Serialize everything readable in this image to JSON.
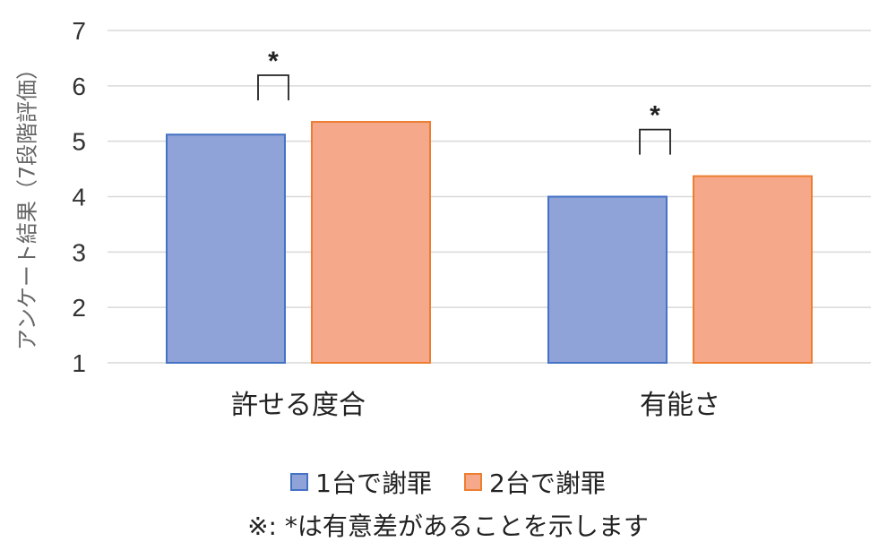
{
  "chart_data": {
    "type": "bar",
    "categories": [
      "許せる度合",
      "有能さ"
    ],
    "series": [
      {
        "name": "1台で謝罪",
        "values": [
          5.12,
          4.0
        ],
        "color": "#8fa3d9",
        "border": "#4472c4"
      },
      {
        "name": "2台で謝罪",
        "values": [
          5.35,
          4.37
        ],
        "color": "#f5a98a",
        "border": "#ed7d31"
      }
    ],
    "ylabel": "アンケート結果（7段階評価）",
    "yticks": [
      "1",
      "2",
      "3",
      "4",
      "5",
      "6",
      "7"
    ],
    "ylim": [
      1,
      7
    ],
    "grid": true,
    "legend_position": "bottom",
    "significance": [
      {
        "category": "許せる度合",
        "label": "*"
      },
      {
        "category": "有能さ",
        "label": "*"
      }
    ],
    "note": "※: *は有意差があることを示します"
  }
}
